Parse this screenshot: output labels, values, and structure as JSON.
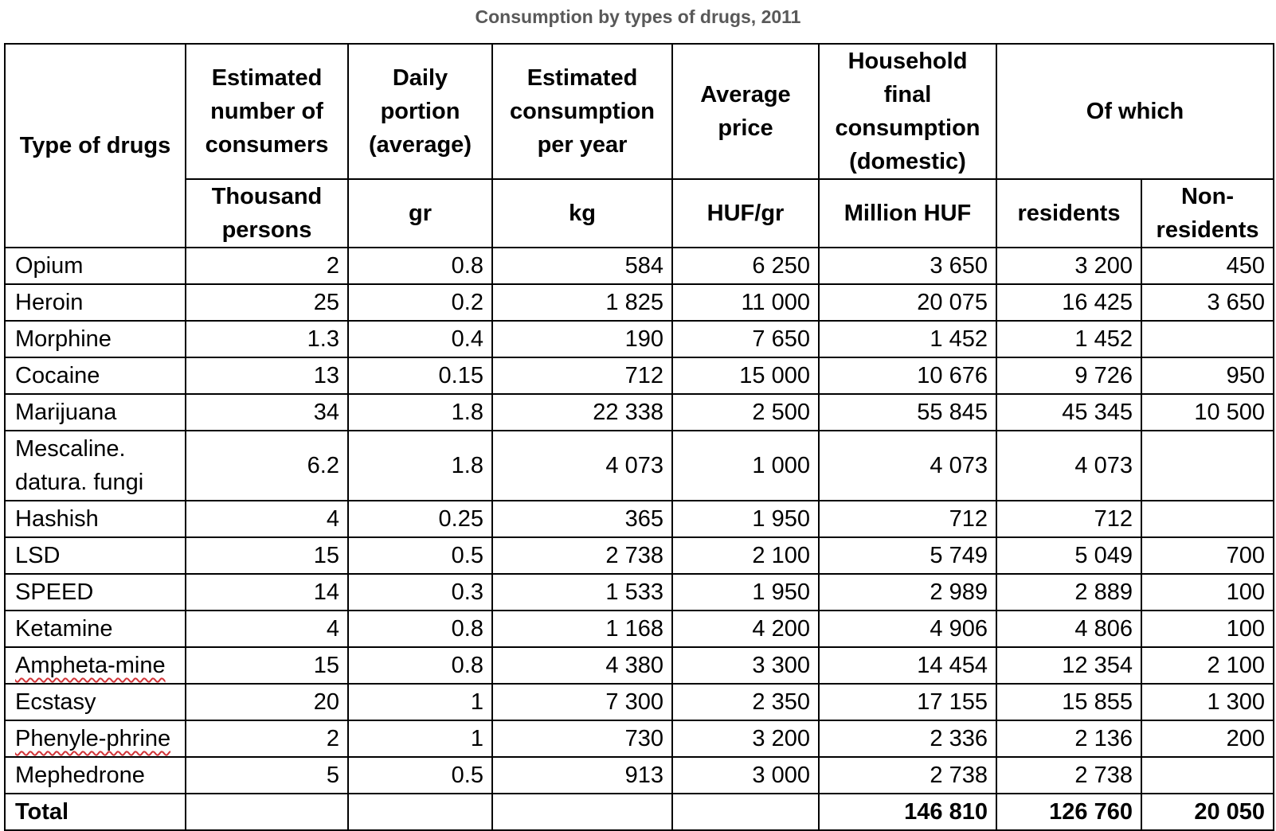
{
  "title": "Consumption by types of drugs, 2011",
  "colors": {
    "title_text": "#595959",
    "table_border": "#000000",
    "spellcheck_underline": "#d13438",
    "background": "#ffffff"
  },
  "table": {
    "header": {
      "type_of_drugs": "Type of drugs",
      "consumers": "Estimated\nnumber of\nconsumers",
      "daily_portion": "Daily\nportion\n(average)",
      "consumption_per_year": "Estimated\nconsumption\nper year",
      "average_price": "Average\nprice",
      "household": "Household final\nconsumption\n(domestic)",
      "of_which": "Of which",
      "units": {
        "consumers": "Thousand\npersons",
        "daily_portion": "gr",
        "consumption_per_year": "kg",
        "average_price": "HUF/gr",
        "household": "Million HUF",
        "residents": "residents",
        "non_residents": "Non-\nresidents"
      }
    },
    "rows": [
      {
        "name": "Opium",
        "consumers": "2",
        "portion": "0.8",
        "kg": "584",
        "price": "6 250",
        "household": "3 650",
        "residents": "3 200",
        "non_residents": "450"
      },
      {
        "name": "Heroin",
        "consumers": "25",
        "portion": "0.2",
        "kg": "1 825",
        "price": "11 000",
        "household": "20 075",
        "residents": "16 425",
        "non_residents": "3 650"
      },
      {
        "name": "Morphine",
        "consumers": "1.3",
        "portion": "0.4",
        "kg": "190",
        "price": "7 650",
        "household": "1 452",
        "residents": "1 452",
        "non_residents": ""
      },
      {
        "name": "Cocaine",
        "consumers": "13",
        "portion": "0.15",
        "kg": "712",
        "price": "15 000",
        "household": "10 676",
        "residents": "9 726",
        "non_residents": "950"
      },
      {
        "name": "Marijuana",
        "consumers": "34",
        "portion": "1.8",
        "kg": "22 338",
        "price": "2 500",
        "household": "55 845",
        "residents": "45 345",
        "non_residents": "10 500"
      },
      {
        "name": "Mescaline.\ndatura. fungi",
        "consumers": "6.2",
        "portion": "1.8",
        "kg": "4 073",
        "price": "1 000",
        "household": "4 073",
        "residents": "4 073",
        "non_residents": ""
      },
      {
        "name": "Hashish",
        "consumers": "4",
        "portion": "0.25",
        "kg": "365",
        "price": "1 950",
        "household": "712",
        "residents": "712",
        "non_residents": ""
      },
      {
        "name": "LSD",
        "consumers": "15",
        "portion": "0.5",
        "kg": "2 738",
        "price": "2 100",
        "household": "5 749",
        "residents": "5 049",
        "non_residents": "700"
      },
      {
        "name": "SPEED",
        "consumers": "14",
        "portion": "0.3",
        "kg": "1 533",
        "price": "1 950",
        "household": "2 989",
        "residents": "2 889",
        "non_residents": "100"
      },
      {
        "name": "Ketamine",
        "consumers": "4",
        "portion": "0.8",
        "kg": "1 168",
        "price": "4 200",
        "household": "4 906",
        "residents": "4 806",
        "non_residents": "100"
      },
      {
        "name": "Ampheta-mine",
        "misspelled": true,
        "consumers": "15",
        "portion": "0.8",
        "kg": "4 380",
        "price": "3 300",
        "household": "14 454",
        "residents": "12 354",
        "non_residents": "2 100"
      },
      {
        "name": "Ecstasy",
        "consumers": "20",
        "portion": "1",
        "kg": "7 300",
        "price": "2 350",
        "household": "17 155",
        "residents": "15 855",
        "non_residents": "1 300"
      },
      {
        "name": "Phenyle-phrine",
        "misspelled": true,
        "consumers": "2",
        "portion": "1",
        "kg": "730",
        "price": "3 200",
        "household": "2 336",
        "residents": "2 136",
        "non_residents": "200"
      },
      {
        "name": "Mephedrone",
        "consumers": "5",
        "portion": "0.5",
        "kg": "913",
        "price": "3 000",
        "household": "2 738",
        "residents": "2 738",
        "non_residents": ""
      }
    ],
    "total": {
      "label": "Total",
      "consumers": "",
      "portion": "",
      "kg": "",
      "price": "",
      "household": "146 810",
      "residents": "126 760",
      "non_residents": "20 050"
    }
  }
}
